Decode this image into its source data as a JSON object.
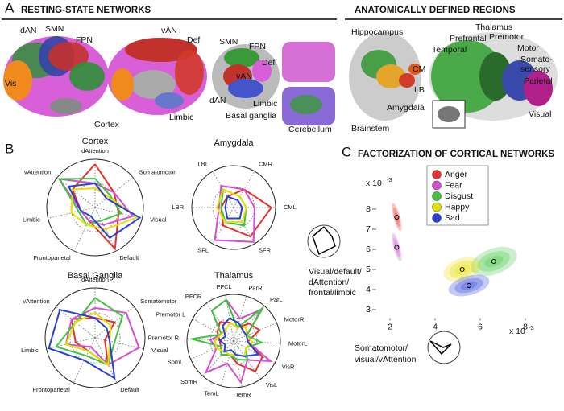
{
  "panel_a": {
    "letter": "A",
    "left_heading": "RESTING-STATE NETWORKS",
    "right_heading": "ANATOMICALLY DEFINED REGIONS",
    "labels": [
      "dAN",
      "SMN",
      "FPN",
      "Vis",
      "vAN",
      "Def",
      "Limbic",
      "Cortex",
      "SMN",
      "FPN",
      "Def",
      "vAN",
      "dAN",
      "Limbic",
      "Basal ganglia",
      "Cerebellum",
      "Hippocampus",
      "CM",
      "LB",
      "Amygdala",
      "Brainstem",
      "Thalamus",
      "Prefrontal",
      "Premotor",
      "Temporal",
      "Motor",
      "Somato-",
      "sensory",
      "Parietal",
      "Visual"
    ]
  },
  "panel_b": {
    "letter": "B",
    "glyph_caption": [
      "Visual/default/",
      "dAttention/",
      "frontal/limbic"
    ]
  },
  "panel_c": {
    "letter": "C",
    "heading": "FACTORIZATION OF CORTICAL NETWORKS",
    "glyph_caption": [
      "Somatomotor/",
      "visual/vAttention"
    ]
  },
  "chart_data": [
    {
      "type": "radar",
      "title": "Cortex",
      "rlim": [
        0,
        1
      ],
      "categories": [
        "dAttention",
        "Somatomotor",
        "Visual",
        "Default",
        "Frontoparietal",
        "Limbic",
        "vAttention"
      ],
      "series": [
        {
          "name": "Anger",
          "color": "#e8312c",
          "values": [
            0.9,
            0.5,
            0.5,
            0.95,
            0.3,
            0.3,
            0.6
          ]
        },
        {
          "name": "Fear",
          "color": "#d44fd4",
          "values": [
            0.5,
            0.5,
            0.8,
            0.4,
            0.3,
            0.3,
            0.95
          ]
        },
        {
          "name": "Disgust",
          "color": "#3fc43f",
          "values": [
            0.6,
            0.4,
            0.55,
            0.3,
            0.4,
            0.35,
            0.95
          ]
        },
        {
          "name": "Happy",
          "color": "#e6e000",
          "values": [
            0.4,
            0.35,
            0.9,
            0.5,
            0.4,
            0.5,
            0.6
          ]
        },
        {
          "name": "Sad",
          "color": "#2a3fd6",
          "values": [
            0.5,
            0.3,
            0.95,
            0.7,
            0.2,
            0.3,
            0.7
          ]
        }
      ]
    },
    {
      "type": "radar",
      "title": "Amygdala",
      "rlim": [
        0,
        1
      ],
      "categories": [
        "CMR",
        "CML",
        "SFR",
        "SFL",
        "LBR",
        "LBL"
      ],
      "series": [
        {
          "name": "Anger",
          "color": "#e8312c",
          "values": [
            0.5,
            0.9,
            0.8,
            0.5,
            0.3,
            0.3
          ]
        },
        {
          "name": "Fear",
          "color": "#d44fd4",
          "values": [
            0.5,
            0.5,
            0.95,
            0.9,
            0.35,
            0.6
          ]
        },
        {
          "name": "Disgust",
          "color": "#3fc43f",
          "values": [
            0.3,
            0.3,
            0.5,
            0.4,
            0.3,
            0.5
          ]
        },
        {
          "name": "Happy",
          "color": "#e6e000",
          "values": [
            0.3,
            0.3,
            0.4,
            0.4,
            0.4,
            0.5
          ]
        },
        {
          "name": "Sad",
          "color": "#2a3fd6",
          "values": [
            0.2,
            0.2,
            0.3,
            0.3,
            0.2,
            0.3
          ]
        }
      ]
    },
    {
      "type": "radar",
      "title": "Basal Ganglia",
      "rlim": [
        0,
        1
      ],
      "categories": [
        "dAttention",
        "Somatomotor",
        "Visual",
        "Default",
        "Frontoparietal",
        "Limbic",
        "vAttention"
      ],
      "series": [
        {
          "name": "Anger",
          "color": "#e8312c",
          "values": [
            0.4,
            0.5,
            0.2,
            0.6,
            0.3,
            0.4,
            0.6
          ]
        },
        {
          "name": "Fear",
          "color": "#d44fd4",
          "values": [
            0.6,
            0.8,
            0.9,
            0.6,
            0.2,
            0.6,
            0.6
          ]
        },
        {
          "name": "Disgust",
          "color": "#3fc43f",
          "values": [
            0.8,
            0.7,
            0.4,
            0.6,
            0.4,
            0.8,
            0.5
          ]
        },
        {
          "name": "Happy",
          "color": "#e6e000",
          "values": [
            0.5,
            0.4,
            0.3,
            0.6,
            0.3,
            0.6,
            0.5
          ]
        },
        {
          "name": "Sad",
          "color": "#2a3fd6",
          "values": [
            0.4,
            0.3,
            0.3,
            0.9,
            0.5,
            0.95,
            0.9
          ]
        }
      ]
    },
    {
      "type": "radar",
      "title": "Thalamus",
      "rlim": [
        0,
        1
      ],
      "categories": [
        "PFCL",
        "ParR",
        "ParL",
        "MotorR",
        "MotorL",
        "VisR",
        "VisL",
        "TemR",
        "TemL",
        "SomR",
        "SomL",
        "Premotor R",
        "Premotor L",
        "PFCR"
      ],
      "series": [
        {
          "name": "Anger",
          "color": "#e8312c",
          "values": [
            0.4,
            0.3,
            0.5,
            0.6,
            0.3,
            0.7,
            0.8,
            0.5,
            0.3,
            0.4,
            0.3,
            0.3,
            0.4,
            0.5
          ]
        },
        {
          "name": "Fear",
          "color": "#d44fd4",
          "values": [
            0.9,
            0.5,
            0.9,
            0.3,
            0.3,
            0.9,
            0.5,
            0.9,
            0.5,
            0.9,
            0.4,
            0.5,
            0.3,
            0.8
          ]
        },
        {
          "name": "Disgust",
          "color": "#3fc43f",
          "values": [
            0.9,
            0.3,
            0.95,
            0.3,
            0.6,
            0.3,
            0.5,
            0.4,
            0.3,
            0.4,
            0.3,
            0.9,
            0.3,
            0.8
          ]
        },
        {
          "name": "Happy",
          "color": "#e6e000",
          "values": [
            0.4,
            0.3,
            0.4,
            0.3,
            0.4,
            0.3,
            0.4,
            0.3,
            0.3,
            0.3,
            0.4,
            0.4,
            0.3,
            0.3
          ]
        },
        {
          "name": "Sad",
          "color": "#2a3fd6",
          "values": [
            0.5,
            0.4,
            0.3,
            0.3,
            0.3,
            0.6,
            0.4,
            0.3,
            0.2,
            0.3,
            0.2,
            0.3,
            0.2,
            0.4
          ]
        }
      ]
    },
    {
      "type": "scatter",
      "x_multiplier": "x 10",
      "x_exponent": "-3",
      "y_multiplier": "x 10",
      "y_exponent": "-3",
      "xlim": [
        1.5,
        8.5
      ],
      "xticks": [
        2,
        4,
        6,
        8
      ],
      "ylim": [
        2.5,
        8.5
      ],
      "yticks": [
        3,
        4,
        5,
        6,
        7,
        8
      ],
      "series": [
        {
          "name": "Anger",
          "color": "#e8312c",
          "x": [
            2.3
          ],
          "y": [
            7.6
          ]
        },
        {
          "name": "Fear",
          "color": "#d44fd4",
          "x": [
            2.3
          ],
          "y": [
            6.1
          ]
        },
        {
          "name": "Disgust",
          "color": "#3fc43f",
          "x": [
            6.6
          ],
          "y": [
            5.4
          ]
        },
        {
          "name": "Happy",
          "color": "#e6e000",
          "x": [
            5.2
          ],
          "y": [
            5.0
          ]
        },
        {
          "name": "Sad",
          "color": "#2a3fd6",
          "x": [
            5.5
          ],
          "y": [
            4.2
          ]
        }
      ]
    }
  ]
}
